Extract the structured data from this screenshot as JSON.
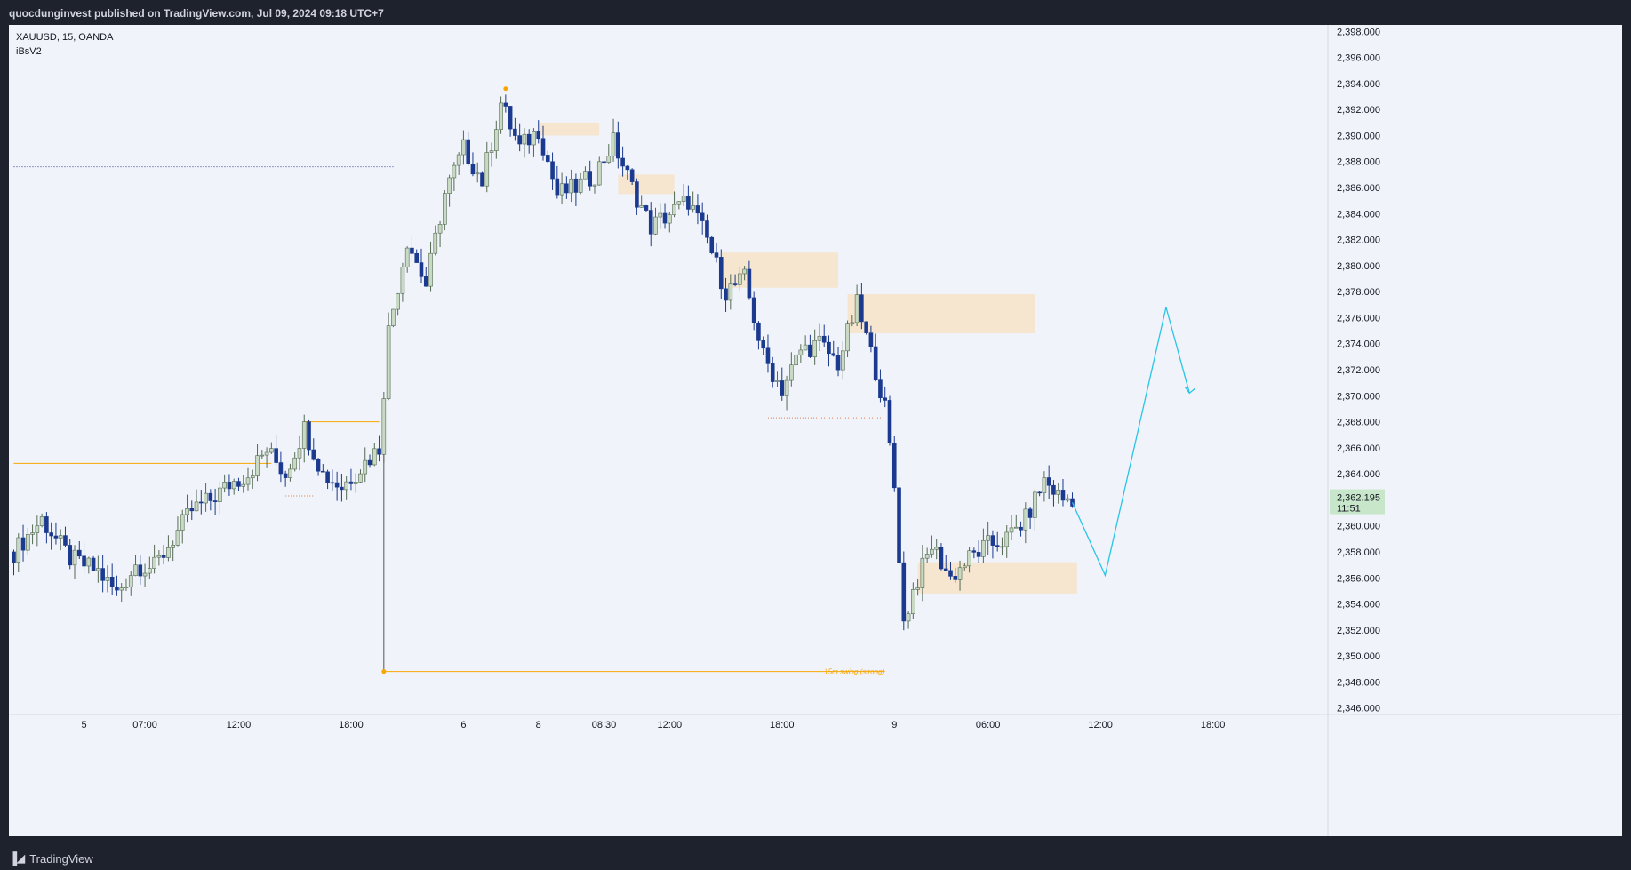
{
  "header": {
    "publisher_line": "quocdunginvest published on TradingView.com, Jul 09, 2024 09:18 UTC+7"
  },
  "legend": {
    "symbol_line": "XAUUSD, 15, OANDA",
    "indicator_line": "iBsV2"
  },
  "footer": {
    "brand": "TradingView"
  },
  "colors": {
    "bull_body": "#c8d9c4",
    "bull_border": "#546a52",
    "bear_body": "#1b3a8f",
    "level_orange": "#f7a600",
    "zone_fill": "#f6e5cf",
    "arrow_cyan": "#29c5e6",
    "current_price_bg": "#c8e6c9",
    "dotted_blue": "#2a3a9a"
  },
  "chart_data": {
    "type": "candlestick",
    "symbol": "XAUUSD",
    "timeframe": "15",
    "ylim": [
      2345.5,
      2398.5
    ],
    "y_ticks": [
      2398,
      2396,
      2394,
      2392,
      2390,
      2388,
      2386,
      2384,
      2382,
      2380,
      2378,
      2376,
      2374,
      2372,
      2370,
      2368,
      2366,
      2364,
      2362,
      2360,
      2358,
      2356,
      2354,
      2352,
      2350,
      2348,
      2346
    ],
    "y_tick_labels": [
      "2,398.000",
      "2,396.000",
      "2,394.000",
      "2,392.000",
      "2,390.000",
      "2,388.000",
      "2,386.000",
      "2,384.000",
      "2,382.000",
      "2,380.000",
      "2,378.000",
      "2,376.000",
      "2,374.000",
      "2,372.000",
      "2,370.000",
      "2,368.000",
      "2,366.000",
      "2,364.000",
      "2,362.000",
      "2,360.000",
      "2,358.000",
      "2,356.000",
      "2,354.000",
      "2,352.000",
      "2,350.000",
      "2,348.000",
      "2,346.000"
    ],
    "x_ticks": [
      {
        "label": "5",
        "bar": 15
      },
      {
        "label": "07:00",
        "bar": 28
      },
      {
        "label": "12:00",
        "bar": 48
      },
      {
        "label": "18:00",
        "bar": 72
      },
      {
        "label": "6",
        "bar": 96
      },
      {
        "label": "8",
        "bar": 112
      },
      {
        "label": "08:30",
        "bar": 126
      },
      {
        "label": "12:00",
        "bar": 140
      },
      {
        "label": "18:00",
        "bar": 164
      },
      {
        "label": "9",
        "bar": 188
      },
      {
        "label": "06:00",
        "bar": 208
      },
      {
        "label": "12:00",
        "bar": 232
      },
      {
        "label": "18:00",
        "bar": 256
      }
    ],
    "current_price": {
      "value": 2362.195,
      "label": "2,362.195",
      "countdown": "11:51"
    },
    "close_path": [
      [
        0,
        2358.0
      ],
      [
        6,
        2360.5
      ],
      [
        12,
        2357.5
      ],
      [
        18,
        2356.5
      ],
      [
        22,
        2354.8
      ],
      [
        26,
        2357.0
      ],
      [
        30,
        2356.8
      ],
      [
        34,
        2359.0
      ],
      [
        38,
        2361.2
      ],
      [
        42,
        2362.0
      ],
      [
        46,
        2363.2
      ],
      [
        50,
        2364.0
      ],
      [
        54,
        2365.8
      ],
      [
        58,
        2364.0
      ],
      [
        62,
        2367.5
      ],
      [
        66,
        2364.0
      ],
      [
        70,
        2363.0
      ],
      [
        74,
        2364.5
      ],
      [
        78,
        2366.0
      ],
      [
        80,
        2375.0
      ],
      [
        84,
        2382.0
      ],
      [
        88,
        2378.5
      ],
      [
        92,
        2385.5
      ],
      [
        96,
        2389.0
      ],
      [
        100,
        2386.5
      ],
      [
        104,
        2392.5
      ],
      [
        108,
        2389.0
      ],
      [
        112,
        2390.5
      ],
      [
        116,
        2385.5
      ],
      [
        120,
        2386.0
      ],
      [
        124,
        2387.0
      ],
      [
        128,
        2389.5
      ],
      [
        132,
        2386.0
      ],
      [
        136,
        2383.0
      ],
      [
        140,
        2384.0
      ],
      [
        144,
        2385.0
      ],
      [
        148,
        2382.0
      ],
      [
        152,
        2378.0
      ],
      [
        156,
        2379.0
      ],
      [
        160,
        2373.0
      ],
      [
        164,
        2370.5
      ],
      [
        168,
        2373.5
      ],
      [
        172,
        2374.0
      ],
      [
        176,
        2372.5
      ],
      [
        180,
        2377.0
      ],
      [
        184,
        2372.0
      ],
      [
        186,
        2369.0
      ],
      [
        188,
        2363.0
      ],
      [
        190,
        2352.5
      ],
      [
        192,
        2355.0
      ],
      [
        196,
        2358.5
      ],
      [
        200,
        2356.0
      ],
      [
        204,
        2357.5
      ],
      [
        208,
        2358.5
      ],
      [
        212,
        2359.0
      ],
      [
        216,
        2360.5
      ],
      [
        220,
        2363.5
      ],
      [
        224,
        2362.0
      ],
      [
        226,
        2362.2
      ]
    ],
    "zones": [
      {
        "from_bar": 112,
        "to_bar": 125,
        "top": 2391.0,
        "bottom": 2390.0
      },
      {
        "from_bar": 129,
        "to_bar": 141,
        "top": 2387.0,
        "bottom": 2385.5
      },
      {
        "from_bar": 151,
        "to_bar": 176,
        "top": 2381.0,
        "bottom": 2378.3
      },
      {
        "from_bar": 178,
        "to_bar": 218,
        "top": 2377.8,
        "bottom": 2374.8
      },
      {
        "from_bar": 193,
        "to_bar": 227,
        "top": 2357.2,
        "bottom": 2354.8
      }
    ],
    "levels": [
      {
        "kind": "solid",
        "from_bar": 0,
        "to_bar": 55,
        "price": 2364.8
      },
      {
        "kind": "solid",
        "from_bar": 62,
        "to_bar": 78,
        "price": 2368.0
      },
      {
        "kind": "dotted",
        "from_bar": 0,
        "to_bar": 81,
        "price": 2387.6
      },
      {
        "kind": "dotted",
        "from_bar": 161,
        "to_bar": 186,
        "price": 2368.3
      },
      {
        "kind": "dotted",
        "from_bar": 58,
        "to_bar": 64,
        "price": 2362.3
      },
      {
        "kind": "solid",
        "from_bar": 79,
        "to_bar": 186,
        "price": 2348.8
      }
    ],
    "level_labels": [
      {
        "text": "15m swing (strong)",
        "bar": 173,
        "price": 2348.8
      }
    ],
    "projection": {
      "points": [
        [
          226,
          2361.8
        ],
        [
          233,
          2356.2
        ],
        [
          246,
          2376.8
        ],
        [
          251,
          2370.2
        ]
      ]
    },
    "swing_marker": {
      "bar": 79,
      "price": 2348.8
    }
  }
}
